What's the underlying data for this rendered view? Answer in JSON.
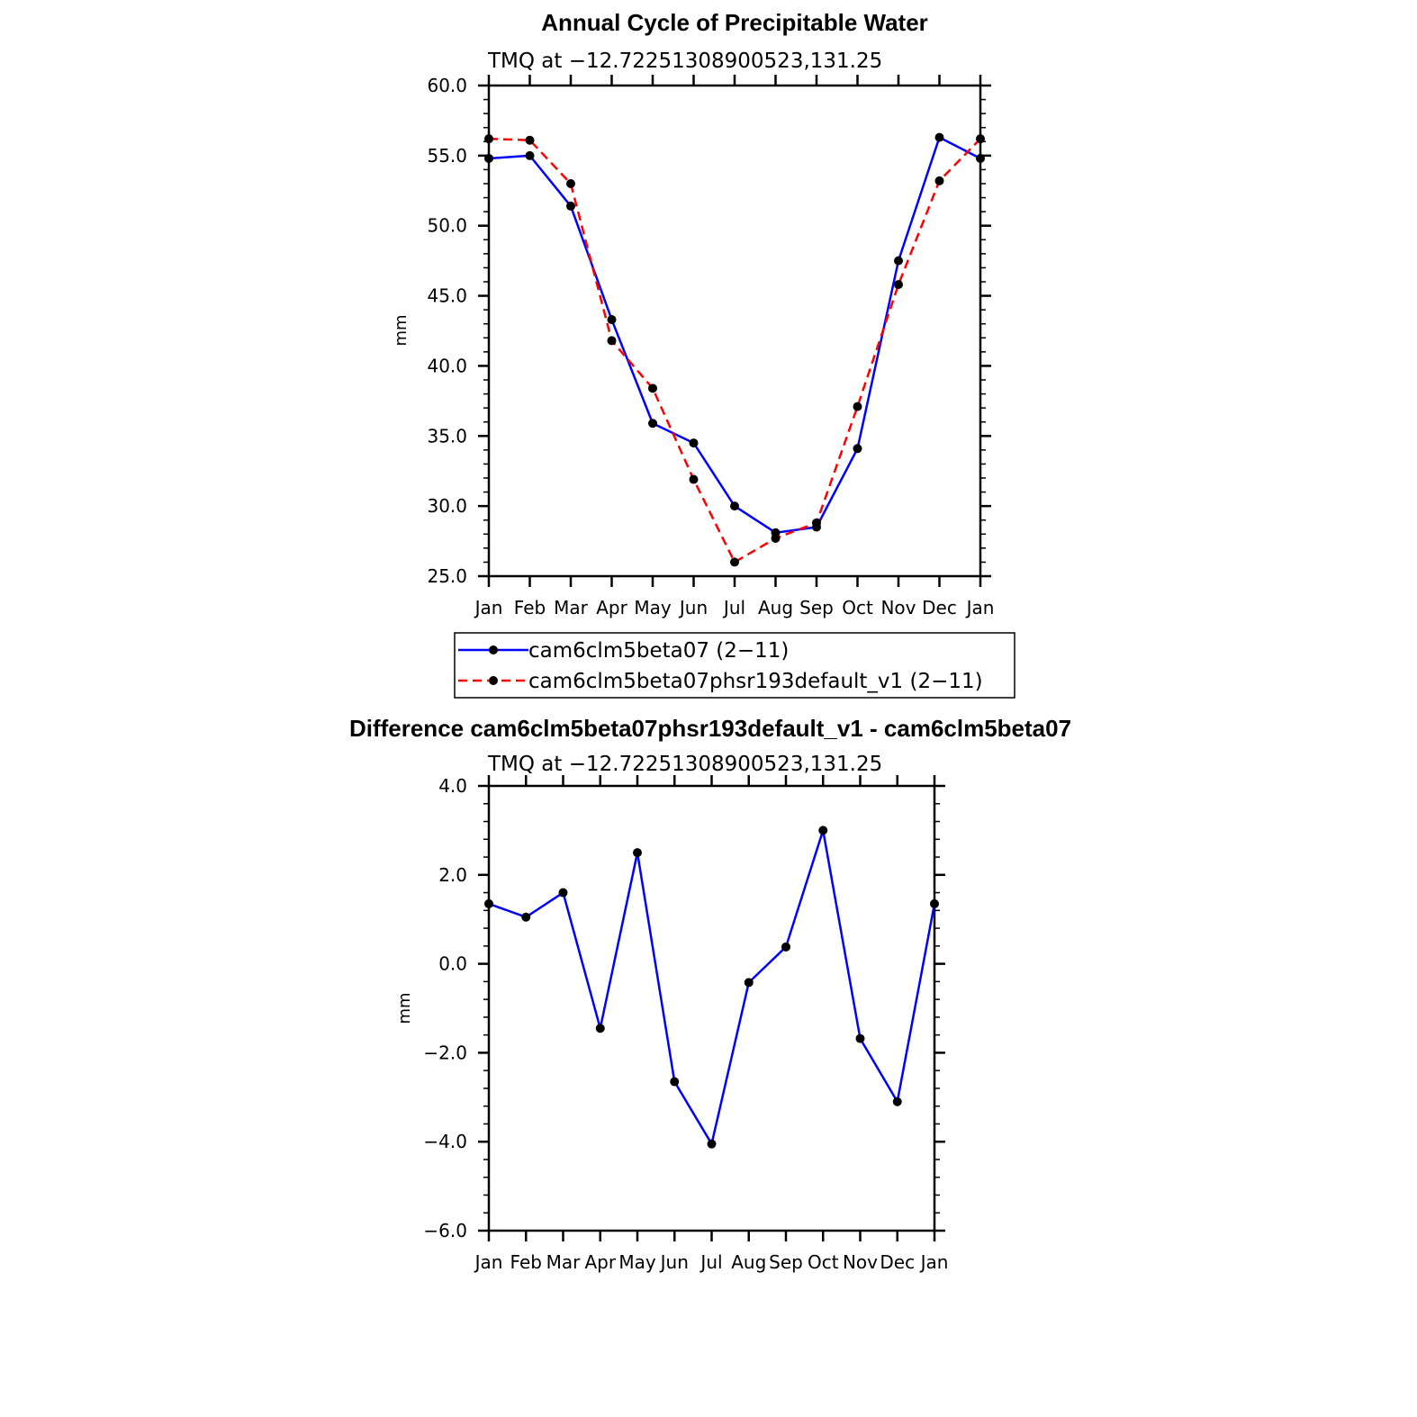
{
  "chart_data": [
    {
      "type": "line",
      "title": "Annual Cycle of Precipitable Water",
      "subtitle": "TMQ at −12.72251308900523,131.25",
      "xlabel": "",
      "ylabel": "mm",
      "categories": [
        "Jan",
        "Feb",
        "Mar",
        "Apr",
        "May",
        "Jun",
        "Jul",
        "Aug",
        "Sep",
        "Oct",
        "Nov",
        "Dec",
        "Jan"
      ],
      "ylim": [
        25,
        60
      ],
      "yticks": [
        "25.0",
        "30.0",
        "35.0",
        "40.0",
        "45.0",
        "50.0",
        "55.0",
        "60.0"
      ],
      "ytick_values": [
        25,
        30,
        35,
        40,
        45,
        50,
        55,
        60
      ],
      "legend": "bottom",
      "series": [
        {
          "name": "cam6clm5beta07 (2−11)",
          "color": "#0000ff",
          "dash": "solid",
          "values": [
            54.8,
            55.0,
            51.4,
            43.3,
            35.9,
            34.5,
            30.0,
            28.1,
            28.5,
            34.1,
            47.5,
            56.3,
            54.8
          ]
        },
        {
          "name": "cam6clm5beta07phsr193default_v1 (2−11)",
          "color": "#ff0000",
          "dash": "dashed",
          "values": [
            56.2,
            56.1,
            53.0,
            41.8,
            38.4,
            31.9,
            26.0,
            27.7,
            28.8,
            37.1,
            45.8,
            53.2,
            56.2
          ]
        }
      ]
    },
    {
      "type": "line",
      "title": "Difference cam6clm5beta07phsr193default_v1 - cam6clm5beta07",
      "subtitle": "TMQ at −12.72251308900523,131.25",
      "xlabel": "",
      "ylabel": "mm",
      "categories": [
        "Jan",
        "Feb",
        "Mar",
        "Apr",
        "May",
        "Jun",
        "Jul",
        "Aug",
        "Sep",
        "Oct",
        "Nov",
        "Dec",
        "Jan"
      ],
      "ylim": [
        -6,
        4
      ],
      "yticks": [
        "−6.0",
        "−4.0",
        "−2.0",
        "0.0",
        "2.0",
        "4.0"
      ],
      "ytick_values": [
        -6,
        -4,
        -2,
        0,
        2,
        4
      ],
      "series": [
        {
          "color": "#0000ff",
          "dash": "solid",
          "values": [
            1.35,
            1.05,
            1.6,
            -1.45,
            2.5,
            -2.65,
            -4.05,
            -0.42,
            0.38,
            3.0,
            -1.68,
            -3.1,
            1.35
          ]
        }
      ]
    }
  ]
}
